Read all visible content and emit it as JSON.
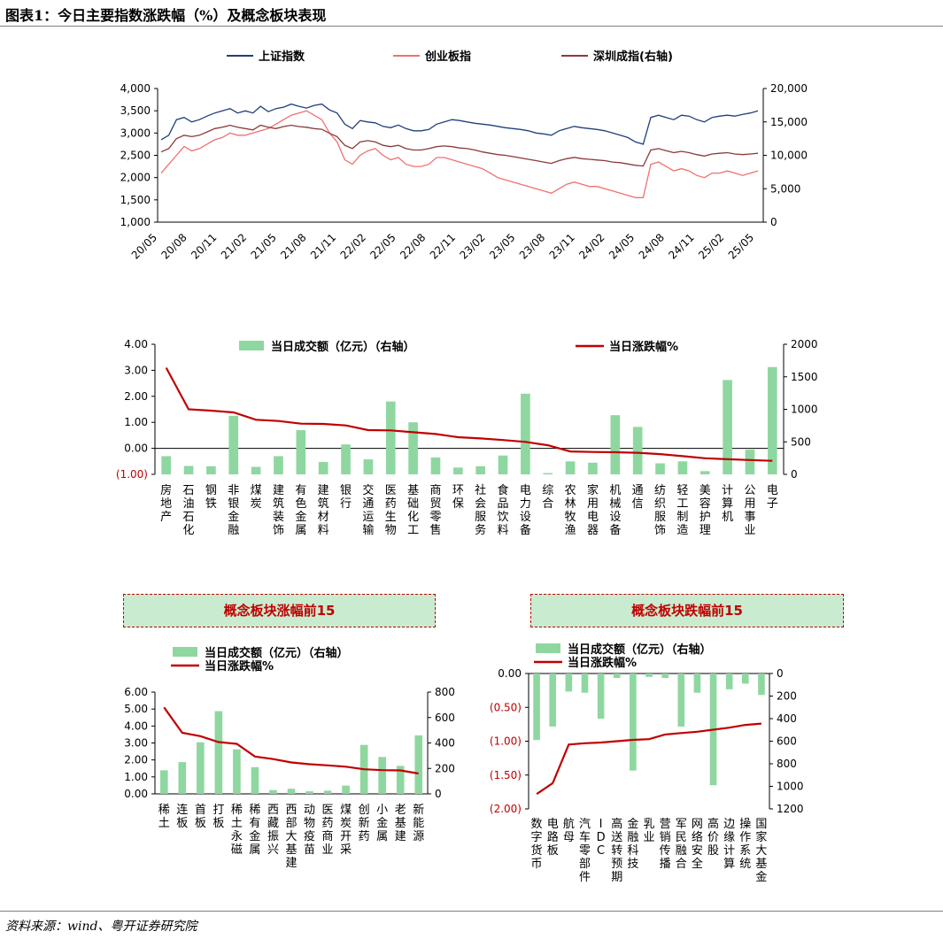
{
  "page": {
    "title": "图表1：今日主要指数涨跌幅（%）及概念板块表现",
    "source": "资料来源：wind、粤开证券研究院"
  },
  "chart_data": [
    {
      "type": "line",
      "legend": [
        "上证指数",
        "创业板指",
        "深圳成指(右轴)"
      ],
      "x_ticks": [
        "20/05",
        "20/08",
        "20/11",
        "21/02",
        "21/05",
        "21/08",
        "21/11",
        "22/02",
        "22/05",
        "22/08",
        "22/11",
        "23/02",
        "23/05",
        "23/08",
        "23/11",
        "24/02",
        "24/05",
        "24/08",
        "24/11",
        "25/02",
        "25/05"
      ],
      "left_ticks": [
        "1,000",
        "1,500",
        "2,000",
        "2,500",
        "3,000",
        "3,500",
        "4,000"
      ],
      "right_ticks": [
        "0",
        "5,000",
        "10,000",
        "15,000",
        "20,000"
      ],
      "ylim_left": [
        1000,
        4000
      ],
      "ylim_right": [
        0,
        20000
      ],
      "colors": {
        "shanghai": "#1f3f7a",
        "chinext": "#f07070",
        "shenzhen": "#8b3a3a"
      },
      "series": [
        {
          "name": "上证指数",
          "axis": "left",
          "values": [
            2850,
            2950,
            3300,
            3350,
            3250,
            3300,
            3380,
            3450,
            3500,
            3550,
            3450,
            3500,
            3450,
            3600,
            3480,
            3550,
            3580,
            3650,
            3600,
            3560,
            3620,
            3650,
            3520,
            3450,
            3200,
            3100,
            3280,
            3250,
            3230,
            3150,
            3120,
            3180,
            3100,
            3050,
            3050,
            3080,
            3200,
            3250,
            3300,
            3280,
            3250,
            3220,
            3200,
            3180,
            3150,
            3120,
            3100,
            3080,
            3050,
            3000,
            2980,
            2950,
            3050,
            3100,
            3150,
            3120,
            3100,
            3080,
            3050,
            3000,
            2950,
            2900,
            2800,
            2750,
            3350,
            3400,
            3350,
            3300,
            3400,
            3380,
            3300,
            3250,
            3350,
            3380,
            3400,
            3380,
            3420,
            3450,
            3500
          ]
        },
        {
          "name": "创业板指",
          "axis": "left",
          "values": [
            2100,
            2300,
            2500,
            2700,
            2600,
            2650,
            2750,
            2850,
            2900,
            3000,
            2950,
            2950,
            3000,
            3050,
            3100,
            3200,
            3300,
            3400,
            3450,
            3500,
            3400,
            3300,
            3000,
            2800,
            2400,
            2300,
            2500,
            2600,
            2650,
            2500,
            2400,
            2450,
            2300,
            2250,
            2250,
            2300,
            2450,
            2450,
            2400,
            2350,
            2300,
            2250,
            2200,
            2100,
            2000,
            1950,
            1900,
            1850,
            1800,
            1750,
            1700,
            1650,
            1750,
            1850,
            1900,
            1850,
            1800,
            1800,
            1750,
            1700,
            1650,
            1600,
            1550,
            1550,
            2300,
            2350,
            2250,
            2150,
            2200,
            2150,
            2050,
            2000,
            2100,
            2100,
            2150,
            2100,
            2050,
            2100,
            2150
          ]
        },
        {
          "name": "深圳成指(右轴)",
          "axis": "right",
          "values": [
            10500,
            11000,
            12500,
            13000,
            12800,
            13000,
            13500,
            14000,
            14200,
            14500,
            14200,
            14000,
            13800,
            14500,
            14200,
            14000,
            14300,
            14500,
            14300,
            14200,
            14000,
            13900,
            13300,
            12800,
            11500,
            11000,
            12000,
            12200,
            12000,
            11500,
            11300,
            11500,
            11000,
            10800,
            10800,
            11000,
            11300,
            11400,
            11300,
            11100,
            11000,
            10800,
            10500,
            10300,
            10100,
            10000,
            9800,
            9600,
            9400,
            9200,
            9000,
            8800,
            9200,
            9500,
            9700,
            9500,
            9400,
            9300,
            9200,
            9000,
            8900,
            8700,
            8500,
            8400,
            10800,
            11000,
            10700,
            10400,
            10600,
            10400,
            10100,
            9900,
            10200,
            10300,
            10400,
            10200,
            10100,
            10200,
            10300
          ]
        }
      ]
    },
    {
      "type": "bar",
      "legend": [
        "当日成交额（亿元）（右轴）",
        "当日涨跌幅%"
      ],
      "categories": [
        "房地产",
        "石油石化",
        "钢铁",
        "非银金融",
        "煤炭",
        "建筑装饰",
        "有色金属",
        "建筑材料",
        "银行",
        "交通运输",
        "医药生物",
        "基础化工",
        "商贸零售",
        "环保",
        "社会服务",
        "食品饮料",
        "电力设备",
        "综合",
        "农林牧渔",
        "家用电器",
        "机械设备",
        "通信",
        "纺织服饰",
        "轻工制造",
        "美容护理",
        "计算机",
        "公用事业",
        "电子"
      ],
      "category_labels": [
        "房地产",
        "石油石化",
        "钢铁",
        "非银金融",
        "煤炭",
        "建筑装饰",
        "有色金属",
        "建筑材料",
        "银行",
        "交通运输",
        "医药生物",
        "基础化工",
        "商贸零售",
        "环保",
        "社会服务",
        "食品饮料",
        "电力设备",
        "综合",
        "农林牧渔",
        "家用电器",
        "机械设备",
        "通信",
        "纺织服饰",
        "轻工制造",
        "美容护理",
        "计算机",
        "公用事业",
        "电子"
      ],
      "left_ticks": [
        "4.00",
        "3.00",
        "2.00",
        "1.00",
        "0.00",
        "(1.00)"
      ],
      "right_ticks": [
        "2000",
        "1500",
        "1000",
        "500",
        "0"
      ],
      "ylim_left": [
        -1,
        4
      ],
      "ylim_right": [
        0,
        2000
      ],
      "pct_change": [
        3.1,
        1.5,
        1.45,
        1.38,
        1.1,
        1.05,
        0.95,
        0.94,
        0.88,
        0.7,
        0.69,
        0.62,
        0.55,
        0.43,
        0.38,
        0.32,
        0.25,
        0.12,
        -0.12,
        -0.14,
        -0.15,
        -0.17,
        -0.22,
        -0.3,
        -0.38,
        -0.42,
        -0.45,
        -0.48
      ],
      "turnover": [
        280,
        130,
        125,
        900,
        115,
        280,
        680,
        190,
        460,
        230,
        1120,
        800,
        260,
        105,
        125,
        290,
        1240,
        20,
        200,
        180,
        910,
        730,
        170,
        200,
        50,
        1450,
        380,
        1650
      ]
    },
    {
      "type": "bar",
      "title": "概念板块涨幅前15",
      "legend": [
        "当日成交额（亿元）（右轴）",
        "当日涨跌幅%"
      ],
      "categories": [
        "稀土",
        "连板",
        "首板",
        "打板",
        "稀土永磁",
        "稀有金属",
        "西藏振兴",
        "西部大基建",
        "动物疫苗",
        "医药商业",
        "煤炭开采",
        "创新药",
        "小金属",
        "老基建",
        "新能源"
      ],
      "category_labels": [
        "稀土",
        "连板",
        "首板",
        "打板",
        "稀土永磁",
        "稀有金属",
        "西藏振兴",
        "西部大基建",
        "动物疫苗",
        "医药商业",
        "煤炭开采",
        "创新药",
        "小金属",
        "老基建",
        "新能源"
      ],
      "left_ticks": [
        "0.00",
        "1.00",
        "2.00",
        "3.00",
        "4.00",
        "5.00",
        "6.00"
      ],
      "right_ticks": [
        "0",
        "200",
        "400",
        "600",
        "800"
      ],
      "ylim_left": [
        0,
        6
      ],
      "ylim_right": [
        0,
        800
      ],
      "pct_change": [
        5.1,
        3.6,
        3.4,
        3.05,
        2.95,
        2.2,
        2.05,
        1.85,
        1.75,
        1.68,
        1.6,
        1.45,
        1.4,
        1.38,
        1.2
      ],
      "turnover": [
        185,
        250,
        405,
        650,
        350,
        210,
        30,
        40,
        20,
        25,
        65,
        385,
        290,
        220,
        460
      ]
    },
    {
      "type": "bar",
      "title": "概念板块跌幅前15",
      "legend": [
        "当日成交额（亿元）（右轴）",
        "当日涨跌幅%"
      ],
      "categories": [
        "数字货币",
        "电路板",
        "航母",
        "汽车零部件",
        "IDC",
        "高送转预期",
        "金融科技",
        "乳业",
        "营销传播",
        "军民融合",
        "网络安全",
        "高价股",
        "边缘计算",
        "操作系统",
        "国家大基金"
      ],
      "category_labels": [
        "数字货币",
        "电路板",
        "航母",
        "汽车零部件",
        "IDC",
        "高送转预期",
        "金融科技",
        "乳业",
        "营销传播",
        "军民融合",
        "网络安全",
        "高价股",
        "边缘计算",
        "操作系统",
        "国家大基金"
      ],
      "left_ticks": [
        "0.00",
        "(0.50)",
        "(1.00)",
        "(1.50)",
        "(2.00)"
      ],
      "right_ticks": [
        "0",
        "200",
        "400",
        "600",
        "800",
        "1000",
        "1200"
      ],
      "ylim_left": [
        -2,
        0
      ],
      "ylim_right": [
        0,
        1200
      ],
      "pct_change": [
        -1.78,
        -1.62,
        -1.05,
        -1.03,
        -1.02,
        -1.0,
        -0.98,
        -0.97,
        -0.9,
        -0.88,
        -0.86,
        -0.83,
        -0.8,
        -0.76,
        -0.74
      ],
      "turnover": [
        590,
        470,
        160,
        170,
        400,
        40,
        860,
        30,
        40,
        470,
        170,
        990,
        140,
        90,
        190
      ]
    }
  ]
}
